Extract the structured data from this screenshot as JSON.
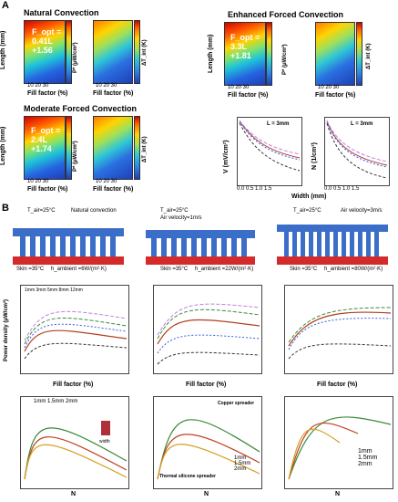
{
  "panel_a": {
    "label": "A",
    "natural_title": "Natural Convection",
    "moderate_title": "Moderate Forced Convection",
    "enhanced_title": "Enhanced Forced Convection",
    "length_label": "Length (mm)",
    "fill_label": "Fill factor (%)",
    "pstar_label": "P* (μW/cm²)",
    "dt_label": "ΔT_int (K)",
    "width_label": "Width (mm)",
    "v_label": "V (mV/cm²)",
    "n_label": "N (1/cm²)",
    "l_label": "L = 3mm",
    "natural_annot": [
      "F_opt =",
      "0.41L",
      "+1.56"
    ],
    "moderate_annot": [
      "F_opt =",
      "2.4L",
      "+1.74"
    ],
    "enhanced_annot": [
      "F_opt =",
      "3.3L",
      "+1.81"
    ]
  },
  "panel_b": {
    "label": "B",
    "sch1": {
      "t_air": "T_air=25°C",
      "mode": "Natural convection",
      "skin": "Skin =35°C",
      "h": "h_ambient =6W/(m²·K)",
      "height": "Hight",
      "mm": "1mm"
    },
    "sch2": {
      "t_air": "T_air=25°C",
      "mode": "Air velocity=1m/s",
      "skin": "Skin =35°C",
      "h": "h_ambient =22W/(m²·K)"
    },
    "sch3": {
      "t_air": "T_air=25°C",
      "mode": "Air velocity=3m/s",
      "skin": "Skin =35°C",
      "h": "h_ambient =80W/(m²·K)"
    },
    "pd_label": "Power density (μW/cm²)",
    "fill_label": "Fill factor (%)",
    "n_label": "N",
    "legend_heights": [
      "1mm",
      "3mm",
      "5mm",
      "8mm",
      "12mm"
    ],
    "legend_widths": [
      "1mm",
      "1.5mm",
      "2mm"
    ],
    "copper": "Copper spreader",
    "silicone": "Thermal silicone spreader",
    "width_note": "width",
    "height_note": "3mm"
  }
}
